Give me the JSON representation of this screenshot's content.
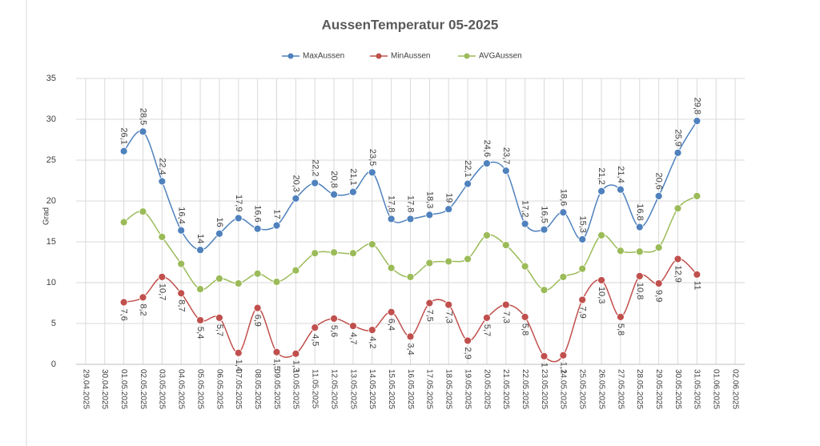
{
  "chart_data": {
    "type": "line",
    "title": "AussenTemperatur 05-2025",
    "y_label": "Grad",
    "categories": [
      "29.04.2025",
      "30.04.2025",
      "01.05.2025",
      "02.05.2025",
      "03.05.2025",
      "04.05.2025",
      "05.05.2025",
      "06.05.2025",
      "07.05.2025",
      "08.05.2025",
      "09.05.2025",
      "10.05.2025",
      "11.05.2025",
      "12.05.2025",
      "13.05.2025",
      "14.05.2025",
      "15.05.2025",
      "16.05.2025",
      "17.05.2025",
      "18.05.2025",
      "19.05.2025",
      "20.05.2025",
      "21.05.2025",
      "22.05.2025",
      "23.05.2025",
      "24.05.2025",
      "25.05.2025",
      "26.05.2025",
      "27.05.2025",
      "28.05.2025",
      "29.05.2025",
      "30.05.2025",
      "31.05.2025",
      "01.06.2025",
      "02.06.2025"
    ],
    "series": [
      {
        "name": "MaxAussen",
        "color": "#4f81bd",
        "label_side": "above",
        "values": [
          null,
          null,
          26.1,
          28.5,
          22.4,
          16.4,
          14,
          16,
          17.9,
          16.6,
          17,
          20.3,
          22.2,
          20.8,
          21.1,
          23.5,
          17.8,
          17.8,
          18.3,
          19,
          22.1,
          24.6,
          23.7,
          17.2,
          16.5,
          18.6,
          15.3,
          21.2,
          21.4,
          16.8,
          20.6,
          25.9,
          29.8,
          null,
          null
        ],
        "value_labels": [
          null,
          null,
          "26,1",
          "28,5",
          "22,4",
          "16,4",
          "14",
          "16",
          "17,9",
          "16,6",
          "17",
          "20,3",
          "22,2",
          "20,8",
          "21,1",
          "23,5",
          "17,8",
          "17,8",
          "18,3",
          "19",
          "22,1",
          "24,6",
          "23,7",
          "17,2",
          "16,5",
          "18,6",
          "15,3",
          "21,2",
          "21,4",
          "16,8",
          "20,6",
          "25,9",
          "29,8",
          null,
          null
        ]
      },
      {
        "name": "MinAussen",
        "color": "#c0504d",
        "label_side": "below",
        "values": [
          null,
          null,
          7.6,
          8.2,
          10.7,
          8.7,
          5.4,
          5.7,
          1.4,
          6.9,
          1.5,
          1.3,
          4.5,
          5.6,
          4.7,
          4.2,
          6.4,
          3.4,
          7.5,
          7.3,
          2.9,
          5.7,
          7.3,
          5.8,
          1,
          1.1,
          7.9,
          10.3,
          5.8,
          10.8,
          9.9,
          12.9,
          11,
          null,
          null
        ],
        "value_labels": [
          null,
          null,
          "7,6",
          "8,2",
          "10,7",
          "8,7",
          "5,4",
          "5,7",
          "1,4",
          "6,9",
          "1,5",
          "1,3",
          "4,5",
          "5,6",
          "4,7",
          "4,2",
          "6,4",
          "3,4",
          "7,5",
          "7,3",
          "2,9",
          "5,7",
          "7,3",
          "5,8",
          "1",
          "1,1",
          "7,9",
          "10,3",
          "5,8",
          "10,8",
          "9,9",
          "12,9",
          "11",
          null,
          null
        ]
      },
      {
        "name": "AVGAussen",
        "color": "#9bbb59",
        "values": [
          null,
          null,
          17.4,
          18.7,
          15.6,
          12.3,
          9.2,
          10.5,
          9.9,
          11.1,
          10.1,
          11.5,
          13.6,
          13.7,
          13.6,
          14.7,
          11.8,
          10.7,
          12.4,
          12.6,
          12.9,
          15.8,
          14.6,
          12,
          9.1,
          10.7,
          11.7,
          15.8,
          13.9,
          13.8,
          14.3,
          19.1,
          20.6,
          null,
          null
        ]
      }
    ],
    "ylim": [
      0,
      35
    ],
    "yticks": [
      0,
      5,
      10,
      15,
      20,
      25,
      30,
      35
    ],
    "grid": true,
    "smooth": true,
    "legend": "top"
  }
}
